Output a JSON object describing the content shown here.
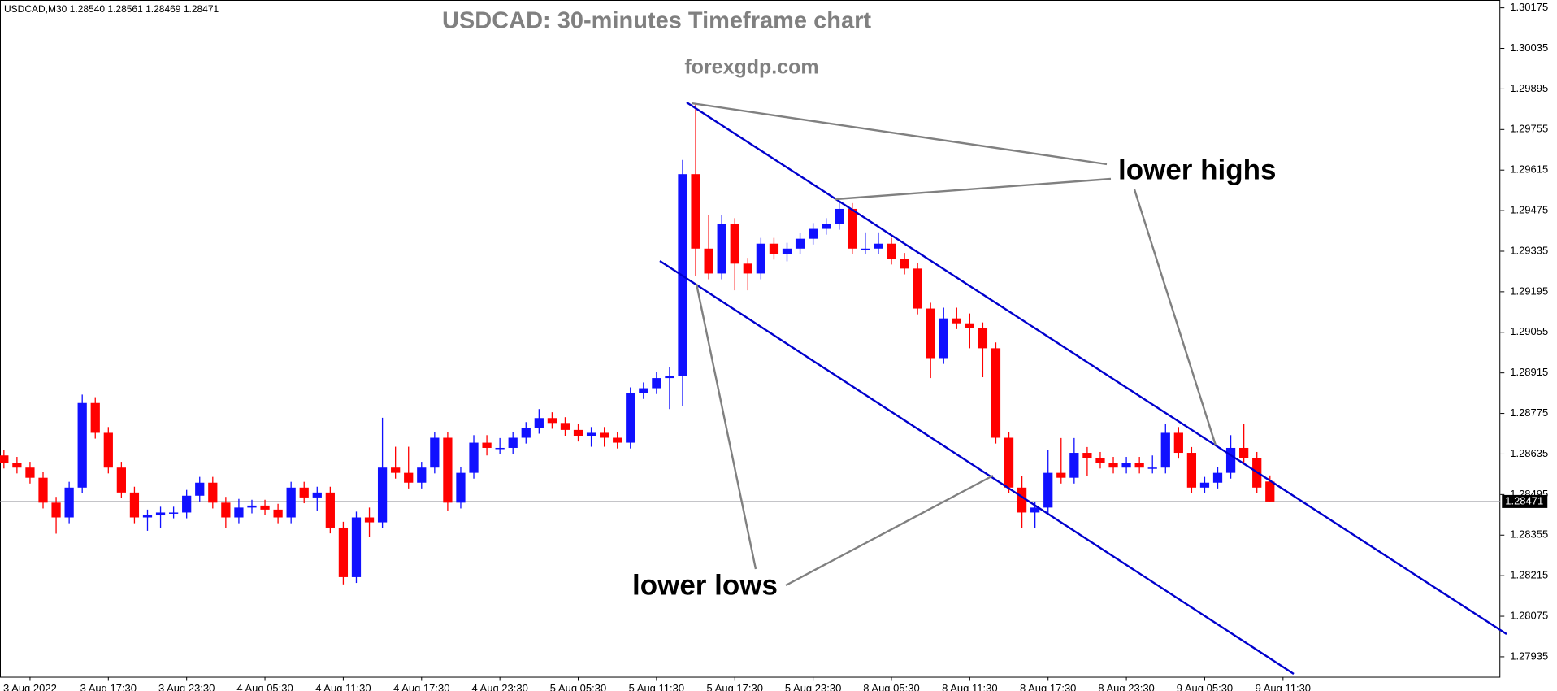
{
  "chart_data": {
    "type": "candlestick",
    "symbol_info": "USDCAD,M30  1.28540 1.28561 1.28469 1.28471",
    "title": "USDCAD: 30-minutes Timeframe chart",
    "subtitle": "forexgdp.com",
    "annotations": [
      "lower highs",
      "lower lows"
    ],
    "up_color": "#1010ff",
    "down_color": "#ff0000",
    "x": [
      0,
      2,
      4,
      6,
      8,
      10,
      12,
      14,
      16,
      18,
      20,
      22,
      24,
      26,
      28,
      30,
      32,
      34,
      36,
      38,
      40,
      42,
      44,
      46,
      48,
      50,
      52,
      54,
      56,
      58,
      60,
      62,
      64,
      66,
      68,
      70,
      72,
      74,
      76,
      78,
      80,
      82,
      84,
      86,
      88,
      90,
      92,
      94,
      96,
      98,
      100,
      102,
      104,
      106,
      108,
      110,
      112,
      114,
      116,
      118,
      120,
      122,
      124,
      126,
      128,
      130,
      132,
      134,
      136,
      138,
      140,
      142,
      144,
      146,
      148,
      150,
      152,
      154,
      156,
      158,
      160,
      162,
      164,
      166,
      168,
      170,
      172,
      174,
      176,
      178,
      180,
      182,
      184,
      186,
      188,
      190,
      192,
      194
    ],
    "open": [
      1.2863,
      1.28605,
      1.28588,
      1.28553,
      1.28467,
      1.28416,
      1.28519,
      1.28811,
      1.28708,
      1.28588,
      1.28502,
      1.28416,
      1.28423,
      1.28433,
      1.28433,
      1.28491,
      1.28536,
      1.28467,
      1.28416,
      1.2845,
      1.28457,
      1.28443,
      1.28416,
      1.28519,
      1.28485,
      1.28502,
      1.28381,
      1.2821,
      1.28416,
      1.28399,
      1.28588,
      1.2857,
      1.28536,
      1.28588,
      1.28691,
      1.28467,
      1.2857,
      1.28674,
      1.28656,
      1.28656,
      1.28691,
      1.28725,
      1.28759,
      1.28742,
      1.28718,
      1.28698,
      1.28708,
      1.28691,
      1.28674,
      1.28845,
      1.28862,
      1.28897,
      1.28904,
      1.29601,
      1.29344,
      1.29258,
      1.29429,
      1.29292,
      1.29258,
      1.29361,
      1.29326,
      1.29344,
      1.29378,
      1.29412,
      1.29429,
      1.29481,
      1.29344,
      1.29344,
      1.29361,
      1.29309,
      1.29275,
      1.29137,
      1.28966,
      1.29103,
      1.29086,
      1.29069,
      1.29,
      1.28691,
      1.28519,
      1.28433,
      1.2845,
      1.2857,
      1.28553,
      1.28639,
      1.28622,
      1.28605,
      1.28588,
      1.28605,
      1.28588,
      1.28588,
      1.28708,
      1.28639,
      1.28519,
      1.28536,
      1.2857,
      1.28656,
      1.28622,
      1.2854
    ],
    "high": [
      1.2865,
      1.28625,
      1.28608,
      1.28573,
      1.28487,
      1.28539,
      1.2884,
      1.28831,
      1.28728,
      1.28608,
      1.28522,
      1.28443,
      1.28453,
      1.28453,
      1.28511,
      1.28556,
      1.28556,
      1.28487,
      1.2848,
      1.28477,
      1.28477,
      1.28463,
      1.28539,
      1.28539,
      1.28522,
      1.28522,
      1.28401,
      1.28436,
      1.2845,
      1.2876,
      1.2866,
      1.2866,
      1.28608,
      1.28711,
      1.28711,
      1.2859,
      1.287,
      1.287,
      1.2869,
      1.28711,
      1.28745,
      1.2879,
      1.28779,
      1.28762,
      1.28738,
      1.28728,
      1.28728,
      1.28711,
      1.28865,
      1.28882,
      1.28917,
      1.28935,
      1.2965,
      1.29842,
      1.2946,
      1.2946,
      1.29449,
      1.29312,
      1.29381,
      1.29381,
      1.29364,
      1.29398,
      1.29432,
      1.29449,
      1.2951,
      1.29501,
      1.294,
      1.294,
      1.29381,
      1.29329,
      1.29295,
      1.29157,
      1.2914,
      1.2914,
      1.2912,
      1.29089,
      1.2902,
      1.28711,
      1.2856,
      1.2847,
      1.2865,
      1.2869,
      1.2869,
      1.28659,
      1.28642,
      1.28625,
      1.28625,
      1.28625,
      1.2863,
      1.2874,
      1.28728,
      1.28659,
      1.28556,
      1.2859,
      1.287,
      1.2874,
      1.28642,
      1.28561
    ],
    "low": [
      1.28585,
      1.28568,
      1.28533,
      1.28447,
      1.2836,
      1.28396,
      1.28499,
      1.28688,
      1.28568,
      1.28482,
      1.28396,
      1.2837,
      1.2838,
      1.28413,
      1.28413,
      1.28471,
      1.28447,
      1.2838,
      1.28396,
      1.2843,
      1.28423,
      1.28396,
      1.28396,
      1.28465,
      1.2844,
      1.28361,
      1.28185,
      1.2819,
      1.2835,
      1.28379,
      1.2855,
      1.28516,
      1.28516,
      1.28568,
      1.2844,
      1.28447,
      1.2855,
      1.2863,
      1.28636,
      1.28636,
      1.28671,
      1.28705,
      1.28722,
      1.28698,
      1.28678,
      1.2866,
      1.2866,
      1.28654,
      1.28654,
      1.28825,
      1.28842,
      1.2879,
      1.288,
      1.2925,
      1.29238,
      1.29238,
      1.292,
      1.292,
      1.29238,
      1.29306,
      1.293,
      1.29324,
      1.29358,
      1.29392,
      1.29409,
      1.29324,
      1.29324,
      1.29324,
      1.29289,
      1.29255,
      1.29117,
      1.28897,
      1.28946,
      1.29066,
      1.29,
      1.289,
      1.28671,
      1.28499,
      1.2838,
      1.2838,
      1.2843,
      1.28533,
      1.28533,
      1.2856,
      1.28585,
      1.28568,
      1.28568,
      1.28568,
      1.28568,
      1.28568,
      1.28619,
      1.28499,
      1.28499,
      1.28516,
      1.2855,
      1.28602,
      1.28499,
      1.28469
    ],
    "close": [
      1.28605,
      1.28588,
      1.28553,
      1.28467,
      1.28416,
      1.28519,
      1.28811,
      1.28708,
      1.28588,
      1.28502,
      1.28416,
      1.28423,
      1.28433,
      1.28433,
      1.28491,
      1.28536,
      1.28467,
      1.28416,
      1.2845,
      1.28457,
      1.28443,
      1.28416,
      1.28519,
      1.28485,
      1.28502,
      1.28381,
      1.2821,
      1.28416,
      1.28399,
      1.28588,
      1.2857,
      1.28536,
      1.28588,
      1.28691,
      1.28467,
      1.2857,
      1.28674,
      1.28656,
      1.28656,
      1.28691,
      1.28725,
      1.28759,
      1.28742,
      1.28718,
      1.28698,
      1.28708,
      1.28691,
      1.28674,
      1.28845,
      1.28862,
      1.28897,
      1.28904,
      1.29601,
      1.29344,
      1.29258,
      1.29429,
      1.29292,
      1.29258,
      1.29361,
      1.29326,
      1.29344,
      1.29378,
      1.29412,
      1.29429,
      1.29481,
      1.29344,
      1.29344,
      1.29361,
      1.29309,
      1.29275,
      1.29137,
      1.28966,
      1.29103,
      1.29086,
      1.29069,
      1.29,
      1.28691,
      1.28519,
      1.28433,
      1.2845,
      1.2857,
      1.28553,
      1.28639,
      1.28622,
      1.28605,
      1.28588,
      1.28605,
      1.28588,
      1.28588,
      1.28708,
      1.28639,
      1.28519,
      1.28536,
      1.2857,
      1.28656,
      1.28622,
      1.28519,
      1.28471
    ],
    "current_price": {
      "value": 1.28471,
      "label": "1.28471"
    },
    "xlim": [
      -0.6,
      229.3
    ],
    "xticks": [
      {
        "value": 4,
        "label": "3 Aug 2022"
      },
      {
        "value": 16,
        "label": "3 Aug 17:30"
      },
      {
        "value": 28,
        "label": "3 Aug 23:30"
      },
      {
        "value": 40,
        "label": "4 Aug 05:30"
      },
      {
        "value": 52,
        "label": "4 Aug 11:30"
      },
      {
        "value": 64,
        "label": "4 Aug 17:30"
      },
      {
        "value": 76,
        "label": "4 Aug 23:30"
      },
      {
        "value": 88,
        "label": "5 Aug 05:30"
      },
      {
        "value": 100,
        "label": "5 Aug 11:30"
      },
      {
        "value": 112,
        "label": "5 Aug 17:30"
      },
      {
        "value": 124,
        "label": "5 Aug 23:30"
      },
      {
        "value": 136,
        "label": "8 Aug 05:30"
      },
      {
        "value": 148,
        "label": "8 Aug 11:30"
      },
      {
        "value": 160,
        "label": "8 Aug 17:30"
      },
      {
        "value": 172,
        "label": "8 Aug 23:30"
      },
      {
        "value": 184,
        "label": "9 Aug 05:30"
      },
      {
        "value": 196,
        "label": "9 Aug 11:30"
      }
    ],
    "ylim": [
      1.27866,
      1.30202
    ],
    "yticks": [
      1.30175,
      1.30035,
      1.29895,
      1.29755,
      1.29615,
      1.29475,
      1.29335,
      1.29195,
      1.29055,
      1.28915,
      1.28775,
      1.28635,
      1.28495,
      1.28355,
      1.28215,
      1.28075,
      1.27935
    ]
  }
}
